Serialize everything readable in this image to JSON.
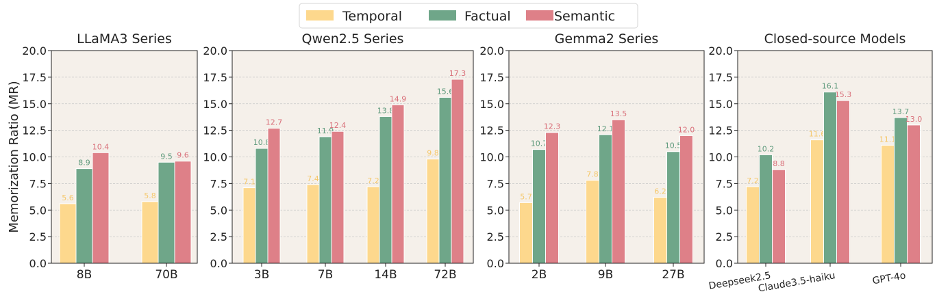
{
  "legend": [
    {
      "name": "Temporal",
      "color": "#fdd88d"
    },
    {
      "name": "Factual",
      "color": "#6fa689"
    },
    {
      "name": "Semantic",
      "color": "#de8088"
    }
  ],
  "ylabel": "Memorization Ratio (MR)",
  "chart_data": [
    {
      "type": "bar",
      "title": "LLaMA3 Series",
      "categories": [
        "8B",
        "70B"
      ],
      "ylim": [
        0,
        20
      ],
      "yticks": [
        "0.0",
        "2.5",
        "5.0",
        "7.5",
        "10.0",
        "12.5",
        "15.0",
        "17.5",
        "20.0"
      ],
      "grid": true,
      "series": [
        {
          "name": "Temporal",
          "values": [
            5.6,
            5.8
          ]
        },
        {
          "name": "Factual",
          "values": [
            8.9,
            9.5
          ]
        },
        {
          "name": "Semantic",
          "values": [
            10.4,
            9.6
          ]
        }
      ]
    },
    {
      "type": "bar",
      "title": "Qwen2.5 Series",
      "categories": [
        "3B",
        "7B",
        "14B",
        "72B"
      ],
      "ylim": [
        0,
        20
      ],
      "yticks": [
        "0.0",
        "2.5",
        "5.0",
        "7.5",
        "10.0",
        "12.5",
        "15.0",
        "17.5",
        "20.0"
      ],
      "grid": true,
      "series": [
        {
          "name": "Temporal",
          "values": [
            7.1,
            7.4,
            7.2,
            9.8
          ]
        },
        {
          "name": "Factual",
          "values": [
            10.8,
            11.9,
            13.8,
            15.6
          ]
        },
        {
          "name": "Semantic",
          "values": [
            12.7,
            12.4,
            14.9,
            17.3
          ]
        }
      ]
    },
    {
      "type": "bar",
      "title": "Gemma2 Series",
      "categories": [
        "2B",
        "9B",
        "27B"
      ],
      "ylim": [
        0,
        20
      ],
      "yticks": [
        "0.0",
        "2.5",
        "5.0",
        "7.5",
        "10.0",
        "12.5",
        "15.0",
        "17.5",
        "20.0"
      ],
      "grid": true,
      "series": [
        {
          "name": "Temporal",
          "values": [
            5.7,
            7.8,
            6.2
          ]
        },
        {
          "name": "Factual",
          "values": [
            10.7,
            12.1,
            10.5
          ]
        },
        {
          "name": "Semantic",
          "values": [
            12.3,
            13.5,
            12.0
          ]
        }
      ]
    },
    {
      "type": "bar",
      "title": "Closed-source Models",
      "categories": [
        "Deepseek2.5",
        "Claude3.5-haiku",
        "GPT-4o"
      ],
      "ylim": [
        0,
        20
      ],
      "yticks": [
        "0.0",
        "2.5",
        "5.0",
        "7.5",
        "10.0",
        "12.5",
        "15.0",
        "17.5",
        "20.0"
      ],
      "grid": true,
      "rotated_labels": true,
      "series": [
        {
          "name": "Temporal",
          "values": [
            7.2,
            11.6,
            11.1
          ]
        },
        {
          "name": "Factual",
          "values": [
            10.2,
            16.1,
            13.7
          ]
        },
        {
          "name": "Semantic",
          "values": [
            8.8,
            15.3,
            13.0
          ]
        }
      ]
    }
  ],
  "colors": {
    "plot_bg": "#f5f0ea",
    "grid": "#c8c8c8",
    "temporal_label": "#f5c76a",
    "factual_label": "#5e9a7c",
    "semantic_label": "#d9707a"
  }
}
